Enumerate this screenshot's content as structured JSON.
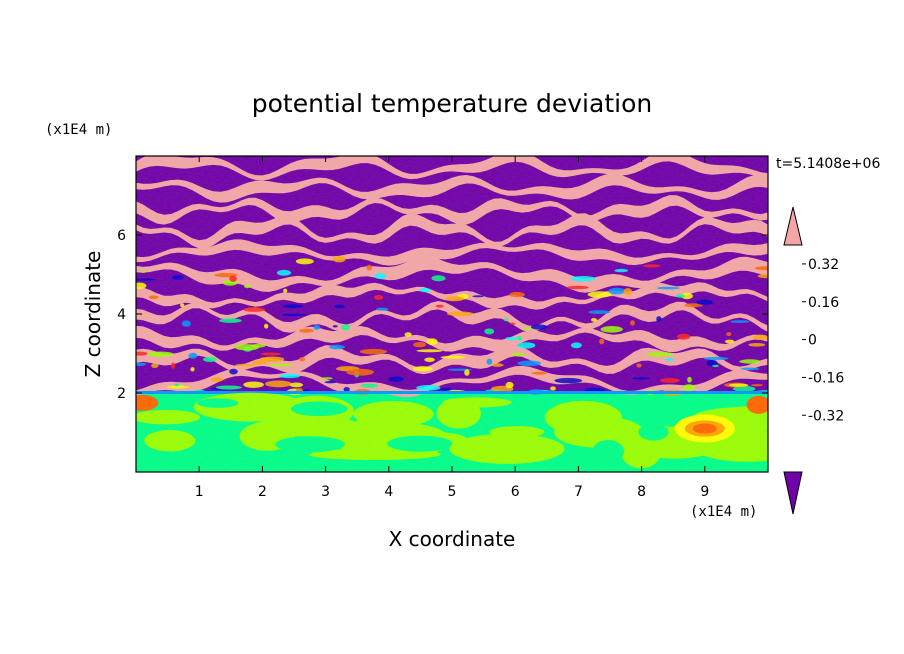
{
  "chart_data": {
    "type": "heatmap",
    "title": "potential temperature deviation",
    "xlabel": "X coordinate",
    "ylabel": "Z coordinate",
    "x_unit": "(x1E4 m)",
    "y_unit": "(x1E4 m)",
    "time_label": "t=5.1408e+06",
    "xlim": [
      0,
      10
    ],
    "ylim": [
      0,
      8
    ],
    "x_ticks": [
      "1",
      "2",
      "3",
      "4",
      "5",
      "6",
      "7",
      "8",
      "9"
    ],
    "y_ticks": [
      "2",
      "4",
      "6"
    ],
    "colorbar": {
      "ticks": [
        "0.32",
        "0.16",
        "0",
        "-0.16",
        "-0.32"
      ],
      "levels": [
        {
          "color": "#f4a6a6"
        },
        {
          "color": "#ff2020"
        },
        {
          "color": "#ff6600"
        },
        {
          "color": "#ffa500"
        },
        {
          "color": "#ffff00"
        },
        {
          "color": "#99ff00"
        },
        {
          "color": "#00ff88"
        },
        {
          "color": "#00ffff"
        },
        {
          "color": "#0099ff"
        },
        {
          "color": "#0000cc"
        },
        {
          "color": "#3300aa"
        },
        {
          "color": "#7000a8"
        }
      ],
      "extend_top_color": "#f4a6a6",
      "extend_bottom_color": "#7000a8"
    },
    "field": {
      "lower_layer_top_z": 2.0,
      "stratified_layer_z": [
        2.0,
        8.0
      ],
      "warm_anomaly": {
        "x": 9.0,
        "z": 1.1
      }
    }
  }
}
